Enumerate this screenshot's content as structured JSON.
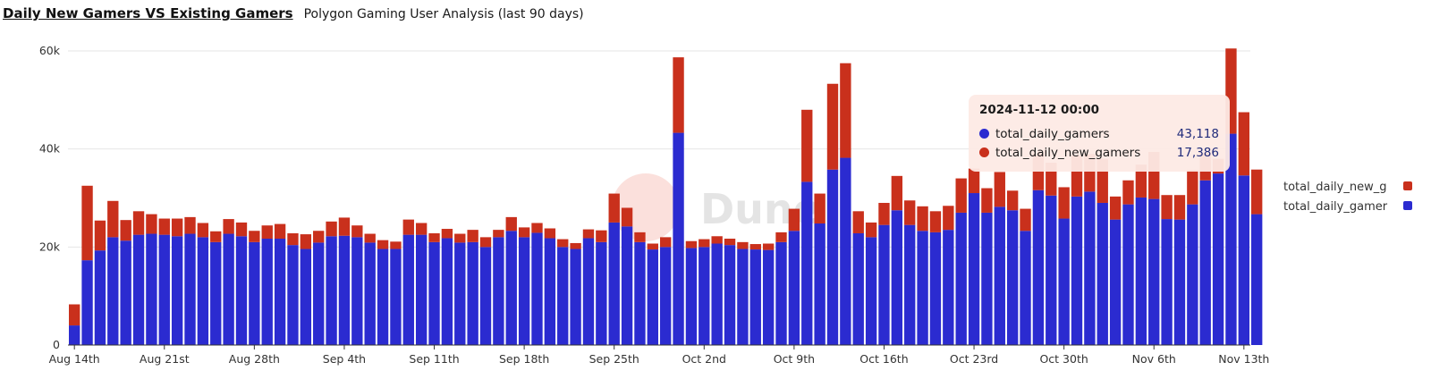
{
  "header": {
    "title": "Daily New Gamers VS Existing Gamers",
    "subtitle": "Polygon Gaming User Analysis (last 90 days)"
  },
  "watermark": {
    "text": "Dune"
  },
  "colors": {
    "existing": "#2b2bd0",
    "new": "#c9301c",
    "grid": "#e6e6e6",
    "axis": "#333333"
  },
  "tooltip": {
    "title": "2024-11-12 00:00",
    "rows": [
      {
        "name": "total_daily_gamers",
        "value": "43,118",
        "color": "#2b2bd0"
      },
      {
        "name": "total_daily_new_gamers",
        "value": "17,386",
        "color": "#c9301c"
      }
    ]
  },
  "chart_data": {
    "type": "bar",
    "stacked": true,
    "x_start": "2024-08-14",
    "x_end": "2024-11-14",
    "ylim": [
      0,
      60000
    ],
    "yticks": [
      0,
      20000,
      40000,
      60000
    ],
    "ytick_labels": [
      "0",
      "20k",
      "40k",
      "60k"
    ],
    "xtick_labels": [
      "Aug 14th",
      "Aug 21st",
      "Aug 28th",
      "Sep 4th",
      "Sep 11th",
      "Sep 18th",
      "Sep 25th",
      "Oct 2nd",
      "Oct 9th",
      "Oct 16th",
      "Oct 23rd",
      "Oct 30th",
      "Nov 6th",
      "Nov 13th"
    ],
    "grid": true,
    "legend_position": "right",
    "legend": [
      "total_daily_new_g",
      "total_daily_gamer"
    ],
    "series": [
      {
        "name": "total_daily_gamers",
        "values": [
          4000,
          17300,
          19300,
          22000,
          21300,
          22500,
          22700,
          22500,
          22200,
          22700,
          22000,
          21000,
          22700,
          22200,
          21000,
          21700,
          21700,
          20400,
          19600,
          20900,
          22200,
          22300,
          22000,
          20900,
          19600,
          19600,
          22500,
          22500,
          21000,
          21800,
          20900,
          21000,
          20000,
          22000,
          23300,
          22000,
          22900,
          21800,
          20000,
          19600,
          21800,
          21000,
          25000,
          24200,
          21000,
          19500,
          20000,
          43300,
          19800,
          20000,
          20700,
          20400,
          19600,
          19500,
          19400,
          21000,
          23300,
          33300,
          24800,
          35800,
          38200,
          22800,
          22000,
          24500,
          27500,
          24500,
          23300,
          23000,
          23500,
          27000,
          31000,
          27000,
          28200,
          27500,
          23300,
          31600,
          30500,
          25800,
          30300,
          31300,
          29000,
          25600,
          28700,
          30100,
          29800,
          25700,
          25600,
          28700,
          33600,
          35000,
          43118,
          34600,
          26700
        ]
      },
      {
        "name": "total_daily_new_gamers",
        "values": [
          4300,
          15200,
          6100,
          7400,
          4200,
          4800,
          4000,
          3300,
          3600,
          3400,
          2900,
          2200,
          3000,
          2800,
          2300,
          2700,
          3000,
          2400,
          3000,
          2400,
          3000,
          3700,
          2400,
          1800,
          1800,
          1500,
          3100,
          2400,
          1800,
          1900,
          1800,
          2500,
          2000,
          1500,
          2800,
          2000,
          2000,
          2000,
          1600,
          1200,
          1800,
          2400,
          5900,
          3800,
          2000,
          1200,
          2000,
          15400,
          1400,
          1600,
          1500,
          1300,
          1400,
          1100,
          1300,
          2000,
          4500,
          14700,
          6100,
          17500,
          19300,
          4500,
          3000,
          4500,
          7000,
          5000,
          5000,
          4300,
          4900,
          7000,
          5000,
          5000,
          7100,
          4000,
          4500,
          7500,
          6700,
          6400,
          8300,
          7700,
          9000,
          4700,
          4900,
          6700,
          9600,
          4900,
          5000,
          7000,
          5600,
          3000,
          17386,
          12900,
          9100
        ]
      }
    ]
  }
}
